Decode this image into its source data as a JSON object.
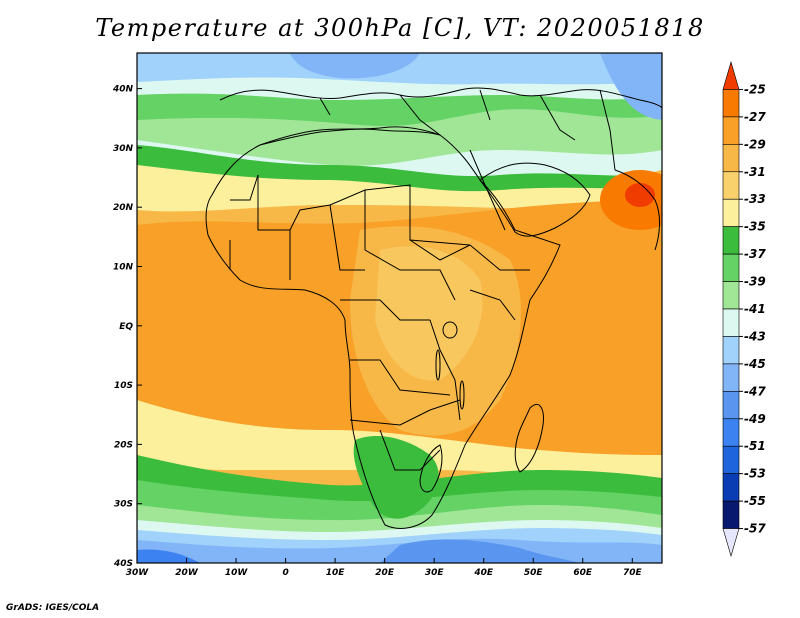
{
  "title": "Temperature at 300hPa [C], VT: 2020051818",
  "footer": "GrADS: IGES/COLA",
  "map": {
    "lon_range": [
      -30,
      76
    ],
    "lat_range": [
      -40,
      46
    ],
    "x_ticks": [
      {
        "value": -30,
        "label": "30W"
      },
      {
        "value": -20,
        "label": "20W"
      },
      {
        "value": -10,
        "label": "10W"
      },
      {
        "value": 0,
        "label": "0"
      },
      {
        "value": 10,
        "label": "10E"
      },
      {
        "value": 20,
        "label": "20E"
      },
      {
        "value": 30,
        "label": "30E"
      },
      {
        "value": 40,
        "label": "40E"
      },
      {
        "value": 50,
        "label": "50E"
      },
      {
        "value": 60,
        "label": "60E"
      },
      {
        "value": 70,
        "label": "70E"
      }
    ],
    "y_ticks": [
      {
        "value": 40,
        "label": "40N"
      },
      {
        "value": 30,
        "label": "30N"
      },
      {
        "value": 20,
        "label": "20N"
      },
      {
        "value": 10,
        "label": "10N"
      },
      {
        "value": 0,
        "label": "EQ"
      },
      {
        "value": -10,
        "label": "10S"
      },
      {
        "value": -20,
        "label": "20S"
      },
      {
        "value": -30,
        "label": "30S"
      },
      {
        "value": -40,
        "label": "40S"
      }
    ]
  },
  "colorbar": {
    "levels": [
      "-25",
      "-27",
      "-29",
      "-31",
      "-33",
      "-35",
      "-37",
      "-39",
      "-41",
      "-43",
      "-45",
      "-47",
      "-49",
      "-51",
      "-53",
      "-55",
      "-57"
    ],
    "colors": [
      "#f03c00",
      "#f87a00",
      "#f8a028",
      "#f8b848",
      "#f8d06c",
      "#fcf09c",
      "#3cbc3c",
      "#64d264",
      "#a0e696",
      "#dcf8f0",
      "#a0d2fc",
      "#82b4f8",
      "#5a96f0",
      "#3c82f0",
      "#1e64dc",
      "#0a3cb4",
      "#08186e",
      "#e6e6fc"
    ]
  }
}
